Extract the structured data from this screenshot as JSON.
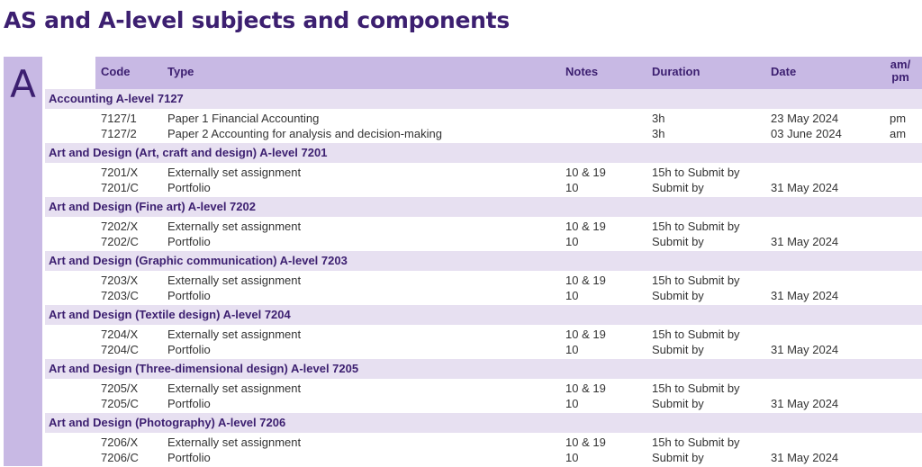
{
  "title": "AS and A-level subjects and components",
  "letter": "A",
  "header": {
    "code": "Code",
    "type": "Type",
    "notes": "Notes",
    "duration": "Duration",
    "date": "Date",
    "ampm_line1": "am/",
    "ampm_line2": "pm"
  },
  "subjects": [
    {
      "name": "Accounting A-level  7127",
      "rows": [
        {
          "code": "7127/1",
          "type": "Paper 1 Financial Accounting",
          "notes": "",
          "duration": "3h",
          "date": "23 May 2024",
          "ampm": "pm"
        },
        {
          "code": "7127/2",
          "type": "Paper 2 Accounting for analysis and decision-making",
          "notes": "",
          "duration": "3h",
          "date": "03 June 2024",
          "ampm": "am"
        }
      ]
    },
    {
      "name": "Art and Design (Art, craft and design) A-level  7201",
      "rows": [
        {
          "code": "7201/X",
          "type": "Externally set assignment",
          "notes": "10 & 19",
          "duration": "15h to Submit by",
          "date": "",
          "ampm": ""
        },
        {
          "code": "7201/C",
          "type": "Portfolio",
          "notes": "10",
          "duration": "Submit by",
          "date": "31 May 2024",
          "ampm": ""
        }
      ]
    },
    {
      "name": "Art and Design (Fine art) A-level  7202",
      "rows": [
        {
          "code": "7202/X",
          "type": "Externally set assignment",
          "notes": "10 & 19",
          "duration": "15h to Submit by",
          "date": "",
          "ampm": ""
        },
        {
          "code": "7202/C",
          "type": "Portfolio",
          "notes": "10",
          "duration": "Submit by",
          "date": "31 May 2024",
          "ampm": ""
        }
      ]
    },
    {
      "name": "Art and Design (Graphic communication) A-level  7203",
      "rows": [
        {
          "code": "7203/X",
          "type": "Externally set assignment",
          "notes": "10 & 19",
          "duration": "15h to Submit by",
          "date": "",
          "ampm": ""
        },
        {
          "code": "7203/C",
          "type": "Portfolio",
          "notes": "10",
          "duration": "Submit by",
          "date": "31 May 2024",
          "ampm": ""
        }
      ]
    },
    {
      "name": "Art and Design (Textile design) A-level  7204",
      "rows": [
        {
          "code": "7204/X",
          "type": "Externally set assignment",
          "notes": "10 & 19",
          "duration": "15h to Submit by",
          "date": "",
          "ampm": ""
        },
        {
          "code": "7204/C",
          "type": "Portfolio",
          "notes": "10",
          "duration": "Submit by",
          "date": "31 May 2024",
          "ampm": ""
        }
      ]
    },
    {
      "name": "Art and Design (Three-dimensional design) A-level  7205",
      "rows": [
        {
          "code": "7205/X",
          "type": "Externally set assignment",
          "notes": "10 & 19",
          "duration": "15h to Submit by",
          "date": "",
          "ampm": ""
        },
        {
          "code": "7205/C",
          "type": "Portfolio",
          "notes": "10",
          "duration": "Submit by",
          "date": "31 May 2024",
          "ampm": ""
        }
      ]
    },
    {
      "name": "Art and Design (Photography) A-level  7206",
      "rows": [
        {
          "code": "7206/X",
          "type": "Externally set assignment",
          "notes": "10 & 19",
          "duration": "15h to Submit by",
          "date": "",
          "ampm": ""
        },
        {
          "code": "7206/C",
          "type": "Portfolio",
          "notes": "10",
          "duration": "Submit by",
          "date": "31 May 2024",
          "ampm": ""
        }
      ]
    }
  ]
}
